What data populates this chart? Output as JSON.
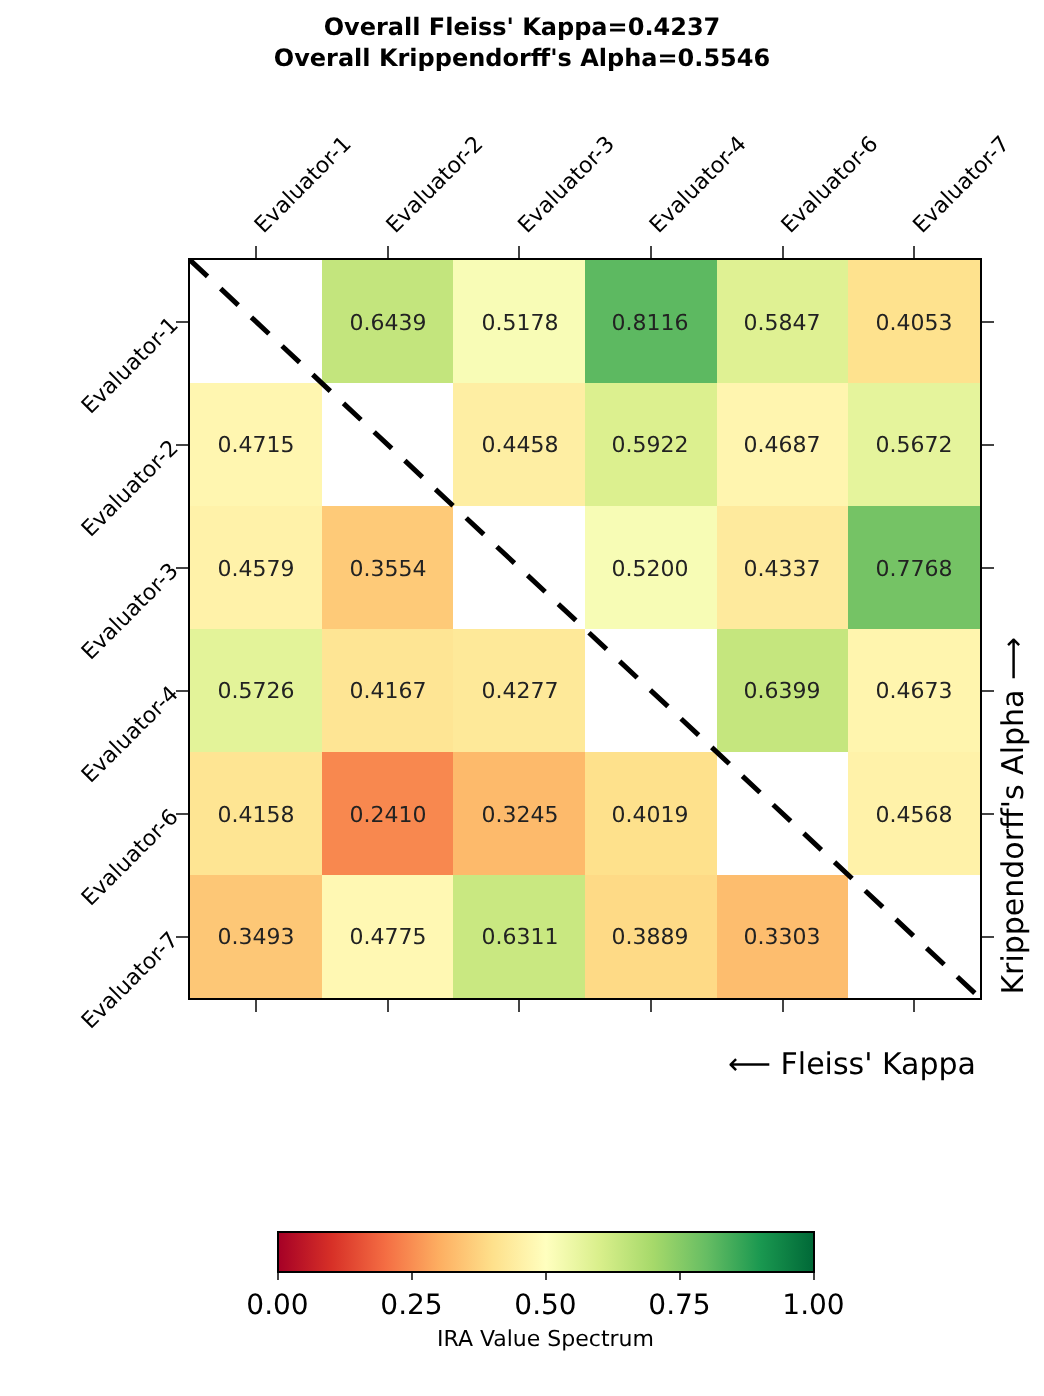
{
  "chart_data": {
    "type": "heatmap",
    "title": "Overall Fleiss' Kappa=0.4237\nOverall Krippendorff's Alpha=0.5546",
    "categories": [
      "Evaluator-1",
      "Evaluator-2",
      "Evaluator-3",
      "Evaluator-4",
      "Evaluator-6",
      "Evaluator-7"
    ],
    "y_categories": [
      "Evaluator-1",
      "Evaluator-2",
      "Evaluator-3",
      "Evaluator-4",
      "Evaluator-6",
      "Evaluator-7"
    ],
    "cells": [
      [
        null,
        0.6439,
        0.5178,
        0.8116,
        0.5847,
        0.4053
      ],
      [
        0.4715,
        null,
        0.4458,
        0.5922,
        0.4687,
        0.5672
      ],
      [
        0.4579,
        0.3554,
        null,
        0.52,
        0.4337,
        0.7768
      ],
      [
        0.5726,
        0.4167,
        0.4277,
        null,
        0.6399,
        0.4673
      ],
      [
        0.4158,
        0.241,
        0.3245,
        0.4019,
        null,
        0.4568
      ],
      [
        0.3493,
        0.4775,
        0.6311,
        0.3889,
        0.3303,
        null
      ]
    ],
    "cell_labels": [
      [
        null,
        "0.6439",
        "0.5178",
        "0.8116",
        "0.5847",
        "0.4053"
      ],
      [
        "0.4715",
        null,
        "0.4458",
        "0.5922",
        "0.4687",
        "0.5672"
      ],
      [
        "0.4579",
        "0.3554",
        null,
        "0.5200",
        "0.4337",
        "0.7768"
      ],
      [
        "0.5726",
        "0.4167",
        "0.4277",
        null,
        "0.6399",
        "0.4673"
      ],
      [
        "0.4158",
        "0.2410",
        "0.3245",
        "0.4019",
        null,
        "0.4568"
      ],
      [
        "0.3493",
        "0.4775",
        "0.6311",
        "0.3889",
        "0.3303",
        null
      ]
    ],
    "xlabel": "⟵ Fleiss' Kappa",
    "y2label": "Krippendorff's Alpha ⟶",
    "clabel": "IRA Value Spectrum",
    "clim": [
      0,
      1
    ],
    "cticks": [
      {
        "value": 0,
        "label": "0.00"
      },
      {
        "value": 0.25,
        "label": "0.25"
      },
      {
        "value": 0.5,
        "label": "0.50"
      },
      {
        "value": 0.75,
        "label": "0.75"
      },
      {
        "value": 1,
        "label": "1.00"
      }
    ]
  }
}
